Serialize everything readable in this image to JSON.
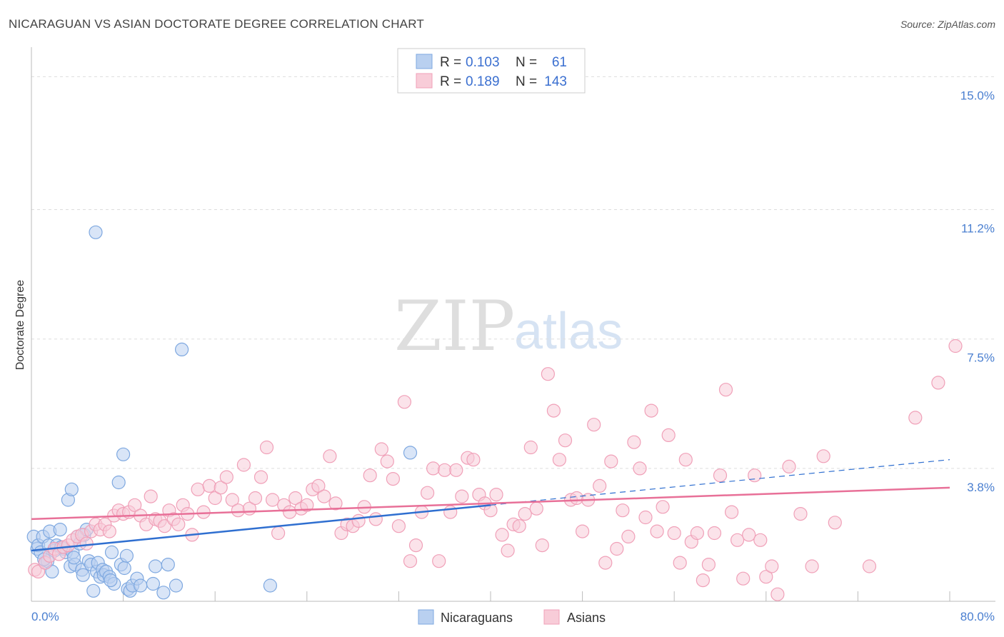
{
  "chart_data": {
    "type": "scatter",
    "title": "NICARAGUAN VS ASIAN DOCTORATE DEGREE CORRELATION CHART",
    "source": "Source: ZipAtlas.com",
    "ylabel": "Doctorate Degree",
    "xlabel": "",
    "xlim": [
      0,
      80
    ],
    "ylim": [
      0,
      15.6
    ],
    "x_tick_labels": [
      "0.0%",
      "80.0%"
    ],
    "y_ticks": [
      {
        "value": 3.8,
        "label": "3.8%"
      },
      {
        "value": 7.5,
        "label": "7.5%"
      },
      {
        "value": 11.2,
        "label": "11.2%"
      },
      {
        "value": 15.0,
        "label": "15.0%"
      }
    ],
    "watermark": {
      "zip": "ZIP",
      "atlas": "atlas"
    },
    "legend": {
      "rows": [
        {
          "r_label": "R =",
          "r_value": "0.103",
          "n_label": "N =",
          "n_value": "61"
        },
        {
          "r_label": "R =",
          "r_value": "0.189",
          "n_label": "N =",
          "n_value": "143"
        }
      ]
    },
    "series": [
      {
        "name": "Nicaraguans",
        "color": "#7ea8e0",
        "fill": "#b9d0f0",
        "trend_color": "#2f6fd0",
        "trend": {
          "x0": 0,
          "y0": 1.45,
          "x1": 40,
          "y1": 2.75,
          "dash_x1": 80,
          "dash_y1": 4.05
        },
        "points": [
          [
            0.2,
            1.85
          ],
          [
            0.5,
            1.5
          ],
          [
            0.6,
            1.6
          ],
          [
            0.8,
            1.4
          ],
          [
            1.0,
            1.85
          ],
          [
            1.2,
            1.1
          ],
          [
            1.4,
            1.15
          ],
          [
            1.5,
            1.6
          ],
          [
            1.6,
            2.0
          ],
          [
            1.8,
            0.85
          ],
          [
            2.0,
            1.45
          ],
          [
            2.2,
            1.6
          ],
          [
            2.5,
            2.05
          ],
          [
            2.8,
            1.5
          ],
          [
            3.0,
            1.4
          ],
          [
            3.2,
            2.9
          ],
          [
            3.4,
            1.0
          ],
          [
            3.5,
            3.2
          ],
          [
            3.6,
            1.4
          ],
          [
            3.8,
            1.05
          ],
          [
            4.0,
            1.85
          ],
          [
            4.2,
            1.65
          ],
          [
            4.4,
            0.9
          ],
          [
            4.5,
            0.75
          ],
          [
            4.6,
            1.9
          ],
          [
            4.8,
            2.05
          ],
          [
            5.0,
            1.15
          ],
          [
            5.2,
            1.05
          ],
          [
            5.4,
            0.3
          ],
          [
            5.6,
            10.55
          ],
          [
            5.7,
            0.85
          ],
          [
            5.8,
            1.1
          ],
          [
            6.0,
            0.7
          ],
          [
            6.2,
            0.9
          ],
          [
            6.3,
            0.75
          ],
          [
            6.5,
            0.85
          ],
          [
            6.8,
            0.7
          ],
          [
            7.0,
            1.4
          ],
          [
            7.2,
            0.5
          ],
          [
            7.6,
            3.4
          ],
          [
            7.8,
            1.05
          ],
          [
            8.0,
            4.2
          ],
          [
            8.1,
            0.95
          ],
          [
            8.3,
            1.3
          ],
          [
            8.4,
            0.35
          ],
          [
            8.6,
            0.3
          ],
          [
            8.8,
            0.45
          ],
          [
            9.2,
            0.65
          ],
          [
            9.5,
            0.45
          ],
          [
            10.6,
            0.5
          ],
          [
            10.8,
            1.0
          ],
          [
            11.5,
            0.25
          ],
          [
            11.9,
            1.05
          ],
          [
            12.6,
            0.45
          ],
          [
            13.1,
            7.2
          ],
          [
            20.8,
            0.45
          ],
          [
            33.0,
            4.25
          ],
          [
            1.1,
            1.2
          ],
          [
            2.6,
            1.55
          ],
          [
            3.7,
            1.25
          ],
          [
            6.9,
            0.6
          ]
        ]
      },
      {
        "name": "Asians",
        "color": "#f0a0b8",
        "fill": "#f8ccd8",
        "trend_color": "#e87098",
        "trend": {
          "x0": 0,
          "y0": 2.35,
          "x1": 80,
          "y1": 3.25
        },
        "points": [
          [
            0.3,
            0.9
          ],
          [
            0.6,
            0.85
          ],
          [
            1.2,
            1.1
          ],
          [
            1.6,
            1.3
          ],
          [
            2.0,
            1.5
          ],
          [
            2.4,
            1.35
          ],
          [
            2.8,
            1.55
          ],
          [
            3.2,
            1.6
          ],
          [
            3.6,
            1.75
          ],
          [
            4.0,
            1.85
          ],
          [
            4.4,
            1.9
          ],
          [
            4.8,
            1.65
          ],
          [
            5.2,
            2.0
          ],
          [
            5.6,
            2.2
          ],
          [
            6.0,
            2.05
          ],
          [
            6.4,
            2.2
          ],
          [
            6.8,
            2.0
          ],
          [
            7.2,
            2.45
          ],
          [
            7.6,
            2.6
          ],
          [
            8.0,
            2.5
          ],
          [
            8.5,
            2.55
          ],
          [
            9.0,
            2.75
          ],
          [
            9.5,
            2.45
          ],
          [
            10.0,
            2.2
          ],
          [
            10.4,
            3.0
          ],
          [
            10.8,
            2.35
          ],
          [
            11.2,
            2.3
          ],
          [
            11.6,
            2.15
          ],
          [
            12.0,
            2.6
          ],
          [
            12.4,
            2.35
          ],
          [
            12.8,
            2.2
          ],
          [
            13.2,
            2.75
          ],
          [
            13.6,
            2.5
          ],
          [
            14.0,
            1.9
          ],
          [
            14.5,
            3.2
          ],
          [
            15.0,
            2.55
          ],
          [
            15.5,
            3.3
          ],
          [
            16.0,
            2.95
          ],
          [
            16.5,
            3.25
          ],
          [
            17.0,
            3.55
          ],
          [
            17.5,
            2.9
          ],
          [
            18.0,
            2.6
          ],
          [
            18.5,
            3.9
          ],
          [
            19.0,
            2.65
          ],
          [
            19.5,
            2.95
          ],
          [
            20.0,
            3.55
          ],
          [
            20.5,
            4.4
          ],
          [
            21.0,
            2.9
          ],
          [
            21.5,
            1.95
          ],
          [
            22.0,
            2.75
          ],
          [
            22.5,
            2.55
          ],
          [
            23.0,
            2.95
          ],
          [
            23.5,
            2.65
          ],
          [
            24.0,
            2.75
          ],
          [
            24.5,
            3.2
          ],
          [
            25.0,
            3.3
          ],
          [
            25.5,
            3.0
          ],
          [
            26.0,
            4.15
          ],
          [
            26.5,
            2.8
          ],
          [
            27.0,
            1.95
          ],
          [
            27.5,
            2.2
          ],
          [
            28.0,
            2.15
          ],
          [
            28.5,
            2.3
          ],
          [
            29.0,
            2.7
          ],
          [
            29.5,
            3.6
          ],
          [
            30.0,
            2.35
          ],
          [
            30.5,
            4.35
          ],
          [
            31.0,
            4.0
          ],
          [
            31.5,
            3.5
          ],
          [
            32.0,
            2.15
          ],
          [
            32.5,
            5.7
          ],
          [
            33.0,
            1.15
          ],
          [
            33.5,
            1.6
          ],
          [
            34.0,
            2.55
          ],
          [
            34.5,
            3.1
          ],
          [
            35.0,
            3.8
          ],
          [
            35.5,
            1.15
          ],
          [
            36.0,
            3.75
          ],
          [
            36.5,
            2.55
          ],
          [
            37.0,
            3.75
          ],
          [
            37.5,
            3.0
          ],
          [
            38.0,
            4.1
          ],
          [
            38.5,
            4.05
          ],
          [
            39.0,
            3.05
          ],
          [
            39.5,
            2.8
          ],
          [
            40.0,
            2.6
          ],
          [
            40.5,
            3.05
          ],
          [
            41.0,
            1.9
          ],
          [
            41.5,
            1.45
          ],
          [
            42.0,
            2.2
          ],
          [
            42.5,
            2.15
          ],
          [
            43.0,
            2.5
          ],
          [
            43.5,
            4.4
          ],
          [
            44.0,
            2.65
          ],
          [
            44.5,
            1.6
          ],
          [
            45.0,
            6.5
          ],
          [
            45.5,
            5.45
          ],
          [
            46.0,
            4.05
          ],
          [
            46.5,
            4.6
          ],
          [
            47.0,
            2.9
          ],
          [
            47.5,
            2.95
          ],
          [
            48.0,
            2.0
          ],
          [
            48.5,
            2.9
          ],
          [
            49.0,
            5.05
          ],
          [
            49.5,
            3.3
          ],
          [
            50.0,
            1.1
          ],
          [
            50.5,
            4.0
          ],
          [
            51.0,
            1.5
          ],
          [
            51.5,
            2.6
          ],
          [
            52.0,
            1.85
          ],
          [
            52.5,
            4.55
          ],
          [
            53.0,
            3.8
          ],
          [
            53.5,
            2.4
          ],
          [
            54.0,
            5.45
          ],
          [
            54.5,
            2.0
          ],
          [
            55.0,
            2.7
          ],
          [
            55.5,
            4.75
          ],
          [
            56.0,
            1.95
          ],
          [
            56.5,
            1.1
          ],
          [
            57.0,
            4.05
          ],
          [
            57.5,
            1.7
          ],
          [
            58.0,
            1.95
          ],
          [
            58.5,
            0.6
          ],
          [
            59.0,
            1.05
          ],
          [
            59.5,
            1.95
          ],
          [
            60.0,
            3.6
          ],
          [
            60.5,
            6.05
          ],
          [
            61.0,
            2.55
          ],
          [
            61.5,
            1.75
          ],
          [
            62.0,
            0.65
          ],
          [
            62.5,
            1.9
          ],
          [
            63.0,
            3.6
          ],
          [
            63.5,
            1.75
          ],
          [
            64.0,
            0.7
          ],
          [
            64.5,
            1.0
          ],
          [
            65.0,
            0.2
          ],
          [
            66.0,
            3.85
          ],
          [
            67.0,
            2.5
          ],
          [
            68.0,
            1.0
          ],
          [
            69.0,
            4.15
          ],
          [
            70.0,
            2.25
          ],
          [
            73.0,
            1.0
          ],
          [
            77.0,
            5.25
          ],
          [
            79.0,
            6.25
          ],
          [
            80.5,
            7.3
          ]
        ]
      }
    ]
  }
}
